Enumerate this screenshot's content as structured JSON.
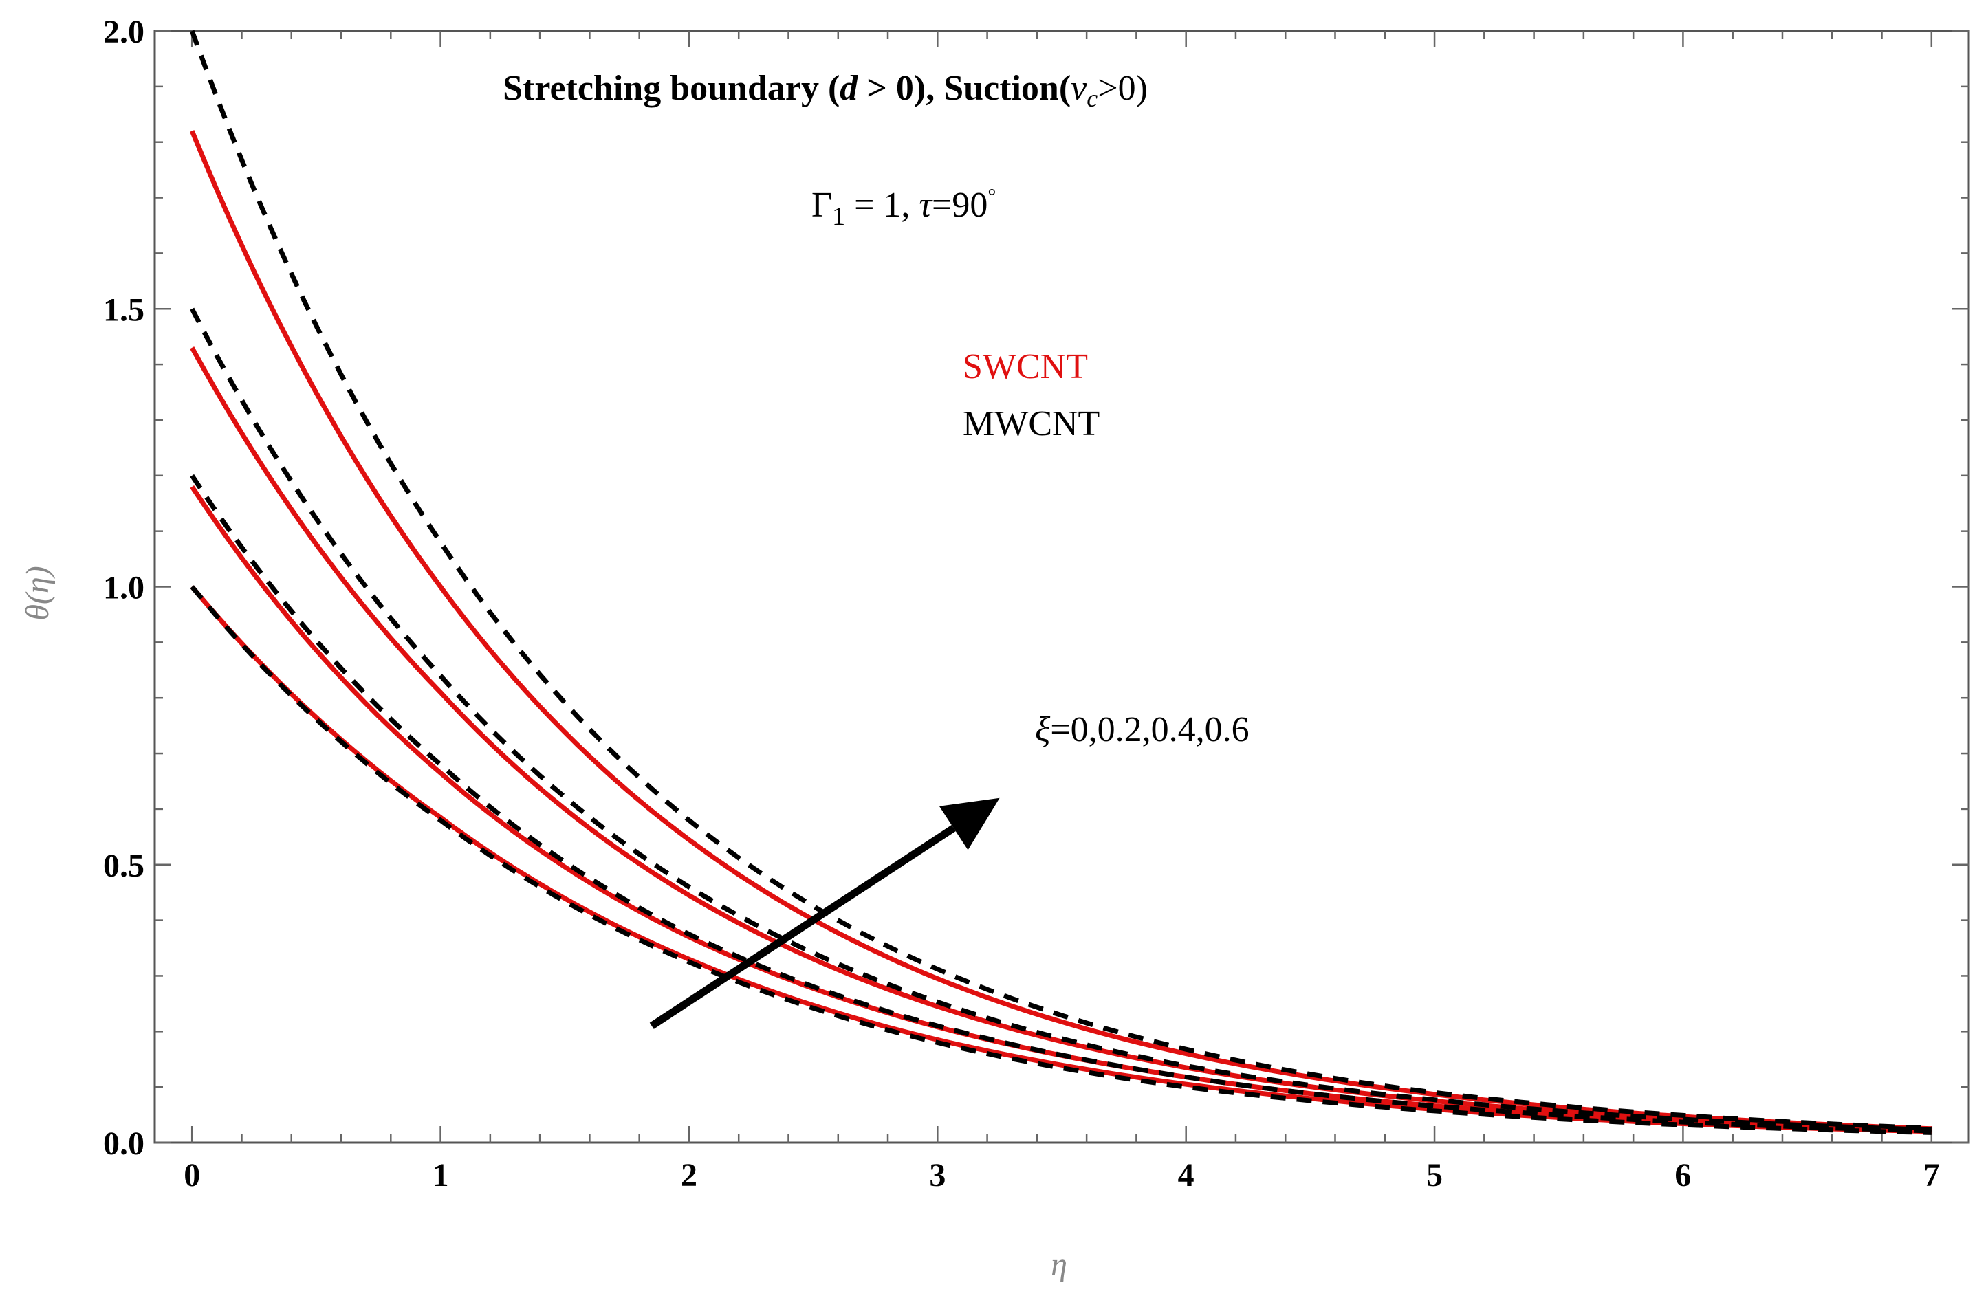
{
  "chart_data": {
    "type": "line",
    "title_parts": {
      "main": "Stretching boundary (",
      "d": "d",
      "gt0": " > 0), Suction(",
      "v": "v",
      "sub_c": "c",
      "end": ">0)"
    },
    "param_parts": {
      "gamma": "Γ",
      "sub_1": "1",
      "eq1": " = 1, ",
      "tau": "τ",
      "eq90": "=90",
      "deg": "°"
    },
    "xlabel": "η",
    "ylabel": "θ(η)",
    "xlim": [
      -0.15,
      7.15
    ],
    "ylim": [
      0,
      2.0
    ],
    "x_ticks": [
      "0",
      "1",
      "2",
      "3",
      "4",
      "5",
      "6",
      "7"
    ],
    "x_tick_values": [
      0,
      1,
      2,
      3,
      4,
      5,
      6,
      7
    ],
    "y_ticks": [
      "0.0",
      "0.5",
      "1.0",
      "1.5",
      "2.0"
    ],
    "y_tick_values": [
      0,
      0.5,
      1.0,
      1.5,
      2.0
    ],
    "legend": [
      {
        "label": "SWCNT",
        "color": "#e01010",
        "style": "solid"
      },
      {
        "label": "MWCNT",
        "color": "#000000",
        "style": "dashed"
      }
    ],
    "arrow_label_parts": {
      "xi": "ξ",
      "values": "=0,0.2,0.4,0.6"
    },
    "arrow": {
      "from": [
        1.85,
        0.21
      ],
      "to": [
        3.25,
        0.62
      ]
    },
    "series": [
      {
        "name": "SWCNT ξ=0",
        "color": "#e01010",
        "style": "solid",
        "theta0": 1.0,
        "x": [
          0,
          1,
          2,
          3,
          4,
          5,
          6,
          7
        ],
        "y": [
          1.0,
          0.585,
          0.33,
          0.185,
          0.105,
          0.06,
          0.034,
          0.02
        ]
      },
      {
        "name": "SWCNT ξ=0.2",
        "color": "#e01010",
        "style": "solid",
        "theta0": 1.18,
        "x": [
          0,
          1,
          2,
          3,
          4,
          5,
          6,
          7
        ],
        "y": [
          1.18,
          0.665,
          0.37,
          0.208,
          0.118,
          0.066,
          0.037,
          0.021
        ]
      },
      {
        "name": "SWCNT ξ=0.4",
        "color": "#e01010",
        "style": "solid",
        "theta0": 1.43,
        "x": [
          0,
          1,
          2,
          3,
          4,
          5,
          6,
          7
        ],
        "y": [
          1.43,
          0.81,
          0.445,
          0.245,
          0.135,
          0.075,
          0.042,
          0.023
        ]
      },
      {
        "name": "SWCNT ξ=0.6",
        "color": "#e01010",
        "style": "solid",
        "theta0": 1.82,
        "x": [
          0,
          1,
          2,
          3,
          4,
          5,
          6,
          7
        ],
        "y": [
          1.82,
          1.0,
          0.545,
          0.295,
          0.16,
          0.087,
          0.047,
          0.025
        ]
      },
      {
        "name": "MWCNT ξ=0",
        "color": "#000000",
        "style": "dashed",
        "theta0": 1.0,
        "x": [
          0,
          1,
          2,
          3,
          4,
          5,
          6,
          7
        ],
        "y": [
          1.0,
          0.58,
          0.325,
          0.18,
          0.1,
          0.057,
          0.032,
          0.018
        ]
      },
      {
        "name": "MWCNT ξ=0.2",
        "color": "#000000",
        "style": "dashed",
        "theta0": 1.2,
        "x": [
          0,
          1,
          2,
          3,
          4,
          5,
          6,
          7
        ],
        "y": [
          1.2,
          0.68,
          0.375,
          0.21,
          0.118,
          0.066,
          0.037,
          0.021
        ]
      },
      {
        "name": "MWCNT ξ=0.4",
        "color": "#000000",
        "style": "dashed",
        "theta0": 1.5,
        "x": [
          0,
          1,
          2,
          3,
          4,
          5,
          6,
          7
        ],
        "y": [
          1.5,
          0.84,
          0.46,
          0.253,
          0.138,
          0.077,
          0.042,
          0.023
        ]
      },
      {
        "name": "MWCNT ξ=0.6",
        "color": "#000000",
        "style": "dashed",
        "theta0": 2.0,
        "x": [
          0,
          1,
          2,
          3,
          4,
          5,
          6,
          7
        ],
        "y": [
          2.0,
          1.08,
          0.58,
          0.312,
          0.168,
          0.09,
          0.049,
          0.026
        ]
      }
    ]
  }
}
